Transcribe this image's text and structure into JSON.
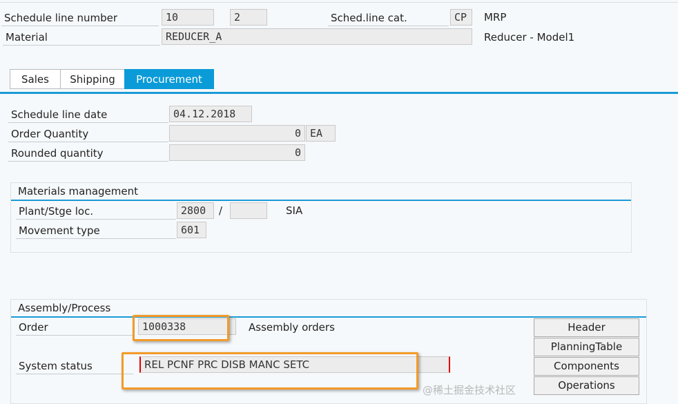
{
  "header": {
    "schedule_line_label": "Schedule line number",
    "item": "10",
    "schedule_line": "2",
    "sched_cat_label": "Sched.line cat.",
    "sched_cat": "CP",
    "sched_cat_text": "MRP",
    "material_label": "Material",
    "material": "REDUCER_A",
    "material_desc": "Reducer - Model1"
  },
  "tabs": [
    {
      "label": "Sales"
    },
    {
      "label": "Shipping"
    },
    {
      "label": "Procurement",
      "active": true
    }
  ],
  "procurement": {
    "date_label": "Schedule line date",
    "date": "04.12.2018",
    "order_qty_label": "Order Quantity",
    "order_qty": "0",
    "unit": "EA",
    "rounded_label": "Rounded quantity",
    "rounded": "0"
  },
  "materials_mgmt": {
    "title": "Materials management",
    "plant_label": "Plant/Stge loc.",
    "plant": "2800",
    "sep": "/",
    "sloc": "",
    "plant_name": "SIA",
    "movement_label": "Movement type",
    "movement": "601"
  },
  "assembly": {
    "title": "Assembly/Process",
    "order_label": "Order",
    "order": "1000338",
    "order_type": "Assembly orders",
    "status_label": "System status",
    "status": "REL  PCNF PRC  DISB MANC SETC",
    "buttons": [
      "Header",
      "PlanningTable",
      "Components",
      "Operations"
    ]
  },
  "colors": {
    "accent": "#0a9bd8",
    "highlight": "#f39a28"
  },
  "watermark": "@稀土掘金技术社区"
}
